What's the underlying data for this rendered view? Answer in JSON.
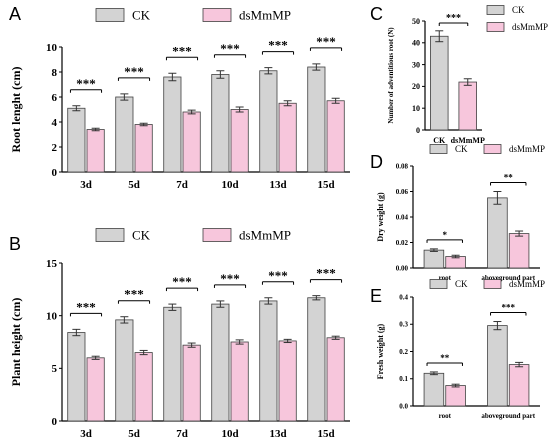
{
  "legend": {
    "ck": "CK",
    "dsmmmp": "dsMmMP"
  },
  "colors": {
    "ck": "#d3d3d3",
    "dsmmmp": "#f7c6dc",
    "edge": "#404040"
  },
  "chart_data": [
    {
      "id": "A",
      "type": "bar",
      "panel_label": "A",
      "title": "",
      "xlabel": "",
      "ylabel": "Root lenght (cm)",
      "ylim": [
        0,
        10
      ],
      "yticks": [
        "0",
        "2",
        "4",
        "6",
        "8",
        "10"
      ],
      "legend_placement": "top",
      "categories": [
        "3d",
        "5d",
        "7d",
        "10d",
        "13d",
        "15d"
      ],
      "series": [
        {
          "name": "CK",
          "values": [
            5.1,
            6.0,
            7.6,
            7.8,
            8.1,
            8.4
          ],
          "errors": [
            0.2,
            0.25,
            0.3,
            0.3,
            0.25,
            0.25
          ]
        },
        {
          "name": "dsMmMP",
          "values": [
            3.4,
            3.8,
            4.8,
            5.0,
            5.5,
            5.7
          ],
          "errors": [
            0.1,
            0.1,
            0.15,
            0.2,
            0.2,
            0.2
          ]
        }
      ],
      "significance": [
        "***",
        "***",
        "***",
        "***",
        "***",
        "***"
      ]
    },
    {
      "id": "B",
      "type": "bar",
      "panel_label": "B",
      "title": "",
      "xlabel": "",
      "ylabel": "Plant height (cm)",
      "ylim": [
        0,
        15
      ],
      "yticks": [
        "0",
        "5",
        "10",
        "15"
      ],
      "legend_placement": "top",
      "categories": [
        "3d",
        "5d",
        "7d",
        "10d",
        "13d",
        "15d"
      ],
      "series": [
        {
          "name": "CK",
          "values": [
            8.4,
            9.6,
            10.8,
            11.1,
            11.4,
            11.7
          ],
          "errors": [
            0.3,
            0.3,
            0.3,
            0.3,
            0.3,
            0.2
          ]
        },
        {
          "name": "dsMmMP",
          "values": [
            6.0,
            6.5,
            7.2,
            7.5,
            7.6,
            7.9
          ],
          "errors": [
            0.15,
            0.2,
            0.2,
            0.2,
            0.15,
            0.15
          ]
        }
      ],
      "significance": [
        "***",
        "***",
        "***",
        "***",
        "***",
        "***"
      ]
    },
    {
      "id": "C",
      "type": "bar",
      "panel_label": "C",
      "title": "",
      "xlabel": "",
      "ylabel": "Number of adventitious root (N)",
      "ylim": [
        0,
        50
      ],
      "yticks": [
        "0",
        "10",
        "20",
        "30",
        "40",
        "50"
      ],
      "legend_placement": "right",
      "categories": [
        "CK",
        "dsMmMP"
      ],
      "values": [
        43,
        22
      ],
      "errors": [
        2.5,
        1.5
      ],
      "significance": [
        "***"
      ]
    },
    {
      "id": "D",
      "type": "bar",
      "panel_label": "D",
      "title": "",
      "xlabel": "",
      "ylabel": "Dry weight (g)",
      "ylim": [
        0,
        0.08
      ],
      "yticks": [
        "0.00",
        "0.02",
        "0.04",
        "0.06",
        "0.08"
      ],
      "legend_placement": "top",
      "categories": [
        "root",
        "aboveground part"
      ],
      "series": [
        {
          "name": "CK",
          "values": [
            0.014,
            0.055
          ],
          "errors": [
            0.001,
            0.005
          ]
        },
        {
          "name": "dsMmMP",
          "values": [
            0.009,
            0.027
          ],
          "errors": [
            0.001,
            0.002
          ]
        }
      ],
      "significance": [
        "*",
        "**"
      ]
    },
    {
      "id": "E",
      "type": "bar",
      "panel_label": "E",
      "title": "",
      "xlabel": "",
      "ylabel": "Fresh weight (g)",
      "ylim": [
        0,
        0.4
      ],
      "yticks": [
        "0.0",
        "0.1",
        "0.2",
        "0.3",
        "0.4"
      ],
      "legend_placement": "top",
      "categories": [
        "root",
        "aboveground part"
      ],
      "series": [
        {
          "name": "CK",
          "values": [
            0.12,
            0.295
          ],
          "errors": [
            0.005,
            0.015
          ]
        },
        {
          "name": "dsMmMP",
          "values": [
            0.075,
            0.152
          ],
          "errors": [
            0.005,
            0.008
          ]
        }
      ],
      "significance": [
        "**",
        "***"
      ]
    }
  ]
}
